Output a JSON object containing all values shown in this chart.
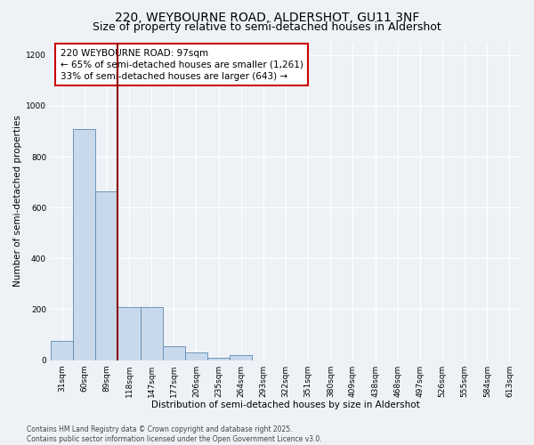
{
  "title1": "220, WEYBOURNE ROAD, ALDERSHOT, GU11 3NF",
  "title2": "Size of property relative to semi-detached houses in Aldershot",
  "xlabel": "Distribution of semi-detached houses by size in Aldershot",
  "ylabel": "Number of semi-detached properties",
  "categories": [
    "31sqm",
    "60sqm",
    "89sqm",
    "118sqm",
    "147sqm",
    "177sqm",
    "206sqm",
    "235sqm",
    "264sqm",
    "293sqm",
    "322sqm",
    "351sqm",
    "380sqm",
    "409sqm",
    "438sqm",
    "468sqm",
    "497sqm",
    "526sqm",
    "555sqm",
    "584sqm",
    "613sqm"
  ],
  "values": [
    75,
    910,
    665,
    210,
    210,
    55,
    30,
    10,
    18,
    0,
    0,
    0,
    0,
    0,
    0,
    0,
    0,
    0,
    0,
    0,
    0
  ],
  "bar_color": "#c9d9ec",
  "bar_edge_color": "#5a8ab0",
  "vline_x": 2.5,
  "vline_color": "#8b0000",
  "annotation_text_line1": "220 WEYBOURNE ROAD: 97sqm",
  "annotation_text_line2": "← 65% of semi-detached houses are smaller (1,261)",
  "annotation_text_line3": "33% of semi-detached houses are larger (643) →",
  "box_color": "#cc0000",
  "ylim": [
    0,
    1250
  ],
  "yticks": [
    0,
    200,
    400,
    600,
    800,
    1000,
    1200
  ],
  "background_color": "#eef2f7",
  "grid_color": "#ffffff",
  "footer_text": "Contains HM Land Registry data © Crown copyright and database right 2025.\nContains public sector information licensed under the Open Government Licence v3.0.",
  "title1_fontsize": 10,
  "title2_fontsize": 9,
  "axis_label_fontsize": 7.5,
  "tick_fontsize": 6.5,
  "annotation_fontsize": 7.5,
  "footer_fontsize": 5.5
}
